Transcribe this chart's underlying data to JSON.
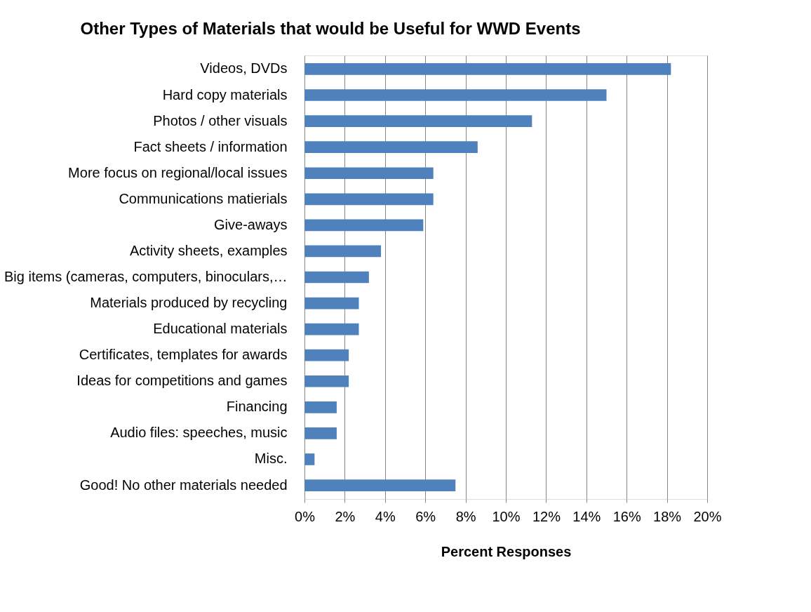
{
  "chart_data": {
    "type": "bar",
    "orientation": "horizontal",
    "title": "Other Types of Materials that would be Useful for WWD Events",
    "xlabel": "Percent Responses",
    "categories": [
      "Videos, DVDs",
      "Hard copy materials",
      "Photos / other visuals",
      "Fact sheets / information",
      "More focus on regional/local issues",
      "Communications matierials",
      "Give-aways",
      "Activity sheets, examples",
      "Big items (cameras, computers, binoculars,…",
      "Materials produced by recycling",
      "Educational materials",
      "Certificates, templates for awards",
      "Ideas for competitions and games",
      "Financing",
      "Audio files: speeches, music",
      "Misc.",
      "Good! No other materials needed"
    ],
    "values": [
      18.2,
      15.0,
      11.3,
      8.6,
      6.4,
      6.4,
      5.9,
      3.8,
      3.2,
      2.7,
      2.7,
      2.2,
      2.2,
      1.6,
      1.6,
      0.5,
      7.5
    ],
    "color": "#4f81bd",
    "xlim": [
      0,
      20
    ],
    "xticks": [
      {
        "value": 0,
        "label": "0%"
      },
      {
        "value": 2,
        "label": "2%"
      },
      {
        "value": 4,
        "label": "4%"
      },
      {
        "value": 6,
        "label": "6%"
      },
      {
        "value": 8,
        "label": "8%"
      },
      {
        "value": 10,
        "label": "10%"
      },
      {
        "value": 12,
        "label": "12%"
      },
      {
        "value": 14,
        "label": "14%"
      },
      {
        "value": 16,
        "label": "16%"
      },
      {
        "value": 18,
        "label": "18%"
      },
      {
        "value": 20,
        "label": "20%"
      }
    ],
    "grid": "x"
  }
}
